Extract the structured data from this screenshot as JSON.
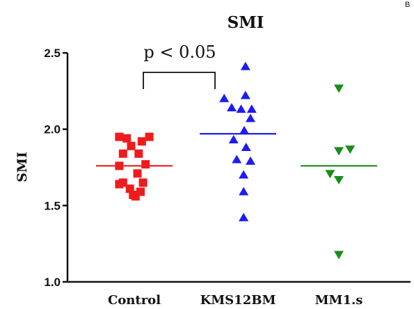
{
  "corner_mark": "B",
  "chart_data": {
    "type": "scatter",
    "title": "SMI",
    "ylabel": "SMI",
    "xlabel": "",
    "ylim": [
      1.0,
      2.5
    ],
    "yticks": [
      "1.0",
      "1.5",
      "2.0",
      "2.5"
    ],
    "categories": [
      "Control",
      "KMS12BM",
      "MM1.s"
    ],
    "series": [
      {
        "category": "Control",
        "marker": "square",
        "color": "#ee1c1c",
        "mean": 1.76,
        "points": [
          {
            "offset": -0.24,
            "y": 1.95
          },
          {
            "offset": -0.12,
            "y": 1.94
          },
          {
            "offset": 0.24,
            "y": 1.95
          },
          {
            "offset": 0.12,
            "y": 1.92
          },
          {
            "offset": -0.05,
            "y": 1.89
          },
          {
            "offset": -0.18,
            "y": 1.84
          },
          {
            "offset": 0.07,
            "y": 1.84
          },
          {
            "offset": -0.24,
            "y": 1.76
          },
          {
            "offset": 0.18,
            "y": 1.77
          },
          {
            "offset": 0.05,
            "y": 1.71
          },
          {
            "offset": -0.18,
            "y": 1.65
          },
          {
            "offset": 0.14,
            "y": 1.65
          },
          {
            "offset": -0.07,
            "y": 1.61
          },
          {
            "offset": 0.1,
            "y": 1.59
          },
          {
            "offset": -0.02,
            "y": 1.57
          },
          {
            "offset": 0.02,
            "y": 1.56
          },
          {
            "offset": -0.24,
            "y": 1.64
          }
        ]
      },
      {
        "category": "KMS12BM",
        "marker": "triangle-up",
        "color": "#1c1cf2",
        "mean": 1.97,
        "points": [
          {
            "offset": 0.12,
            "y": 2.41
          },
          {
            "offset": 0.12,
            "y": 2.22
          },
          {
            "offset": -0.22,
            "y": 2.2
          },
          {
            "offset": -0.1,
            "y": 2.14
          },
          {
            "offset": 0.05,
            "y": 2.13
          },
          {
            "offset": 0.22,
            "y": 2.13
          },
          {
            "offset": 0.2,
            "y": 2.07
          },
          {
            "offset": 0.1,
            "y": 1.99
          },
          {
            "offset": -0.07,
            "y": 1.93
          },
          {
            "offset": 0.13,
            "y": 1.88
          },
          {
            "offset": -0.02,
            "y": 1.8
          },
          {
            "offset": 0.2,
            "y": 1.79
          },
          {
            "offset": 0.09,
            "y": 1.7
          },
          {
            "offset": 0.09,
            "y": 1.59
          },
          {
            "offset": 0.09,
            "y": 1.42
          }
        ]
      },
      {
        "category": "MM1.s",
        "marker": "triangle-down",
        "color": "#1a8c1a",
        "mean": 1.76,
        "points": [
          {
            "offset": 0.0,
            "y": 2.27
          },
          {
            "offset": 0.18,
            "y": 1.87
          },
          {
            "offset": 0.0,
            "y": 1.86
          },
          {
            "offset": -0.14,
            "y": 1.71
          },
          {
            "offset": 0.0,
            "y": 1.67
          },
          {
            "offset": 0.0,
            "y": 1.18
          }
        ]
      }
    ],
    "annotation": {
      "text": "p < 0.05",
      "from": "Control",
      "to": "KMS12BM"
    }
  }
}
